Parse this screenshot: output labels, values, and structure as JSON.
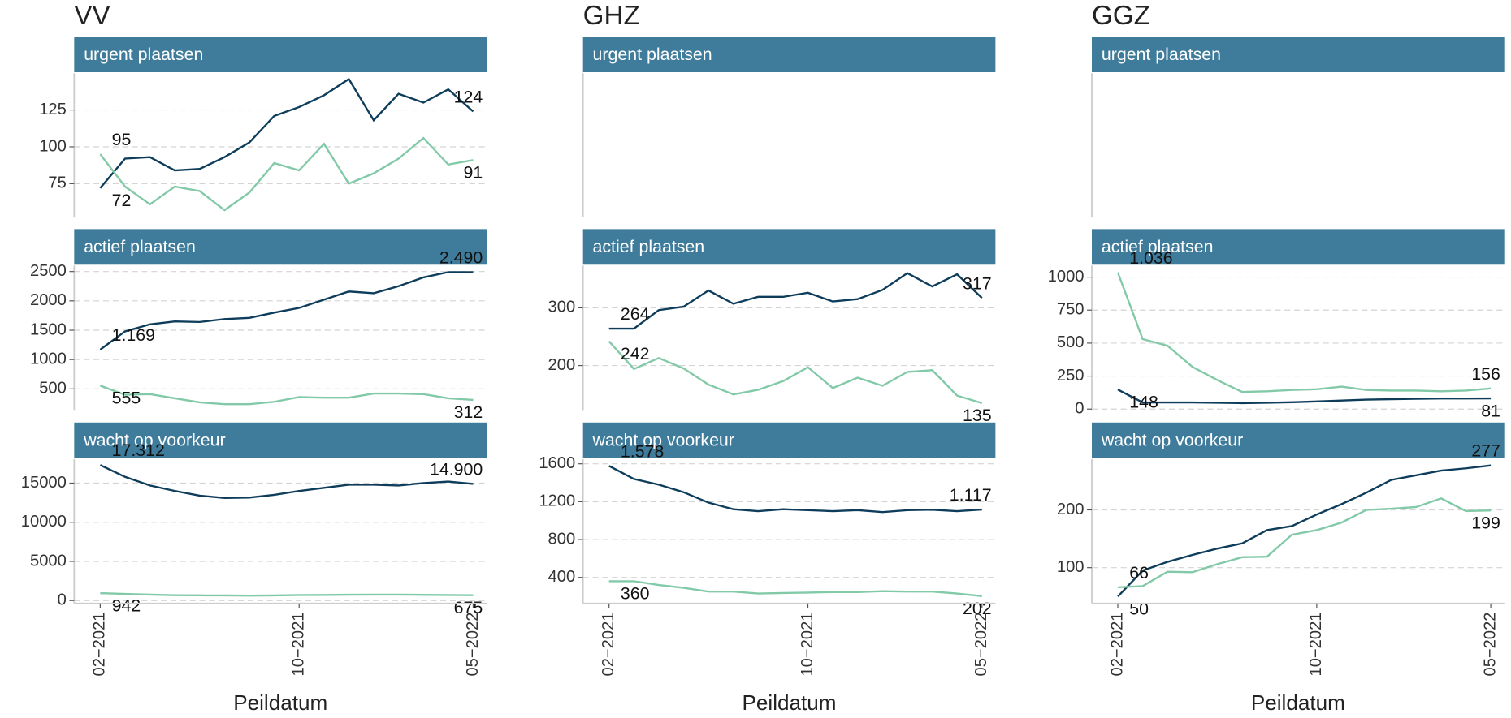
{
  "chart_data": [
    {
      "type": "line",
      "title": "VV",
      "x_label": "Peildatum",
      "categories": [
        "02−2021",
        null,
        null,
        null,
        null,
        null,
        null,
        null,
        "10−2021",
        null,
        null,
        null,
        null,
        null,
        null,
        "05−2022"
      ],
      "panels": [
        {
          "strip": "urgent plaatsen",
          "ylim": [
            52,
            150
          ],
          "yticks": [
            75,
            100,
            125
          ],
          "grid": true,
          "series": [
            {
              "color": "#0d3d5a",
              "values": [
                72,
                92,
                93,
                84,
                85,
                93,
                103,
                121,
                127,
                135,
                146,
                118,
                136,
                130,
                139,
                124
              ],
              "value_labels": [
                "72",
                null,
                null,
                null,
                null,
                null,
                null,
                null,
                null,
                null,
                null,
                null,
                null,
                null,
                null,
                "124"
              ]
            },
            {
              "color": "#82c9a8",
              "values": [
                95,
                73,
                61,
                73,
                70,
                57,
                69,
                89,
                84,
                102,
                75,
                82,
                92,
                106,
                88,
                91
              ],
              "value_labels": [
                "95",
                null,
                null,
                null,
                null,
                null,
                null,
                null,
                null,
                null,
                null,
                null,
                null,
                null,
                null,
                "91"
              ]
            }
          ]
        },
        {
          "strip": "actief plaatsen",
          "ylim": [
            140,
            2600
          ],
          "yticks": [
            500,
            1000,
            1500,
            2000,
            2500
          ],
          "grid": true,
          "series": [
            {
              "color": "#0d3d5a",
              "values": [
                1169,
                1480,
                1600,
                1650,
                1640,
                1690,
                1710,
                1800,
                1880,
                2020,
                2160,
                2130,
                2250,
                2400,
                2490,
                2490
              ],
              "value_labels": [
                "1.169",
                null,
                null,
                null,
                null,
                null,
                null,
                null,
                null,
                null,
                null,
                null,
                null,
                null,
                null,
                "2.490"
              ]
            },
            {
              "color": "#82c9a8",
              "values": [
                555,
                400,
                410,
                340,
                270,
                240,
                240,
                280,
                360,
                350,
                350,
                420,
                420,
                410,
                340,
                312
              ],
              "value_labels": [
                "555",
                null,
                null,
                null,
                null,
                null,
                null,
                null,
                null,
                null,
                null,
                null,
                null,
                null,
                null,
                "312"
              ]
            }
          ]
        },
        {
          "strip": "wacht op voorkeur",
          "ylim": [
            -370,
            18070
          ],
          "yticks": [
            0,
            5000,
            10000,
            15000
          ],
          "grid": true,
          "series": [
            {
              "color": "#0d3d5a",
              "values": [
                17312,
                15800,
                14700,
                14000,
                13400,
                13100,
                13150,
                13500,
                14000,
                14400,
                14800,
                14800,
                14700,
                15000,
                15200,
                14900
              ],
              "value_labels": [
                "17.312",
                null,
                null,
                null,
                null,
                null,
                null,
                null,
                null,
                null,
                null,
                null,
                null,
                null,
                null,
                "14.900"
              ]
            },
            {
              "color": "#82c9a8",
              "values": [
                942,
                850,
                750,
                680,
                660,
                650,
                630,
                650,
                700,
                720,
                740,
                760,
                760,
                730,
                700,
                675
              ],
              "value_labels": [
                "942",
                null,
                null,
                null,
                null,
                null,
                null,
                null,
                null,
                null,
                null,
                null,
                null,
                null,
                null,
                "675"
              ]
            }
          ]
        }
      ]
    },
    {
      "type": "line",
      "title": "GHZ",
      "x_label": "Peildatum",
      "categories": [
        "02−2021",
        null,
        null,
        null,
        null,
        null,
        null,
        null,
        "10−2021",
        null,
        null,
        null,
        null,
        null,
        null,
        "05−2022"
      ],
      "panels": [
        {
          "strip": "urgent plaatsen",
          "series": []
        },
        {
          "strip": "actief plaatsen",
          "ylim": [
            123,
            373
          ],
          "yticks": [
            200,
            300
          ],
          "grid": true,
          "series": [
            {
              "color": "#0d3d5a",
              "values": [
                264,
                264,
                296,
                302,
                330,
                307,
                319,
                319,
                326,
                311,
                315,
                331,
                360,
                337,
                358,
                317
              ],
              "value_labels": [
                "264",
                null,
                null,
                null,
                null,
                null,
                null,
                null,
                null,
                null,
                null,
                null,
                null,
                null,
                null,
                "317"
              ]
            },
            {
              "color": "#82c9a8",
              "values": [
                242,
                194,
                213,
                195,
                167,
                150,
                158,
                173,
                197,
                161,
                179,
                165,
                189,
                192,
                148,
                135
              ],
              "value_labels": [
                "242",
                null,
                null,
                null,
                null,
                null,
                null,
                null,
                null,
                null,
                null,
                null,
                null,
                null,
                null,
                "135"
              ]
            }
          ]
        },
        {
          "strip": "wacht op voorkeur",
          "ylim": [
            125,
            1650
          ],
          "yticks": [
            400,
            800,
            1200,
            1600
          ],
          "grid": true,
          "series": [
            {
              "color": "#0d3d5a",
              "values": [
                1578,
                1440,
                1380,
                1300,
                1190,
                1120,
                1100,
                1120,
                1110,
                1100,
                1110,
                1090,
                1110,
                1115,
                1100,
                1117
              ],
              "value_labels": [
                "1.578",
                null,
                null,
                null,
                null,
                null,
                null,
                null,
                null,
                null,
                null,
                null,
                null,
                null,
                null,
                "1.117"
              ]
            },
            {
              "color": "#82c9a8",
              "values": [
                360,
                360,
                320,
                290,
                250,
                250,
                230,
                235,
                240,
                245,
                245,
                255,
                250,
                250,
                230,
                202
              ],
              "value_labels": [
                "360",
                null,
                null,
                null,
                null,
                null,
                null,
                null,
                null,
                null,
                null,
                null,
                null,
                null,
                null,
                "202"
              ]
            }
          ]
        }
      ]
    },
    {
      "type": "line",
      "title": "GGZ",
      "x_label": "Peildatum",
      "categories": [
        "02−2021",
        null,
        null,
        null,
        null,
        null,
        null,
        null,
        "10−2021",
        null,
        null,
        null,
        null,
        null,
        null,
        "05−2022"
      ],
      "panels": [
        {
          "strip": "urgent plaatsen",
          "series": []
        },
        {
          "strip": "actief plaatsen",
          "ylim": [
            -7,
            1087
          ],
          "yticks": [
            0,
            250,
            500,
            750,
            1000
          ],
          "grid": true,
          "series": [
            {
              "color": "#0d3d5a",
              "values": [
                148,
                50,
                50,
                50,
                48,
                45,
                48,
                52,
                58,
                65,
                72,
                75,
                78,
                80,
                80,
                81
              ],
              "value_labels": [
                "148",
                null,
                null,
                null,
                null,
                null,
                null,
                null,
                null,
                null,
                null,
                null,
                null,
                null,
                null,
                "81"
              ]
            },
            {
              "color": "#82c9a8",
              "values": [
                1036,
                530,
                480,
                320,
                220,
                130,
                135,
                145,
                150,
                170,
                145,
                140,
                140,
                135,
                140,
                156
              ],
              "value_labels": [
                "1.036",
                null,
                null,
                null,
                null,
                null,
                null,
                null,
                null,
                null,
                null,
                null,
                null,
                null,
                null,
                "156"
              ]
            }
          ]
        },
        {
          "strip": "wacht op voorkeur",
          "ylim": [
            38,
            288
          ],
          "yticks": [
            100,
            200
          ],
          "grid": true,
          "series": [
            {
              "color": "#0d3d5a",
              "values": [
                50,
                95,
                110,
                122,
                133,
                142,
                165,
                172,
                192,
                210,
                230,
                252,
                260,
                268,
                272,
                277
              ],
              "value_labels": [
                "50",
                null,
                null,
                null,
                null,
                null,
                null,
                null,
                null,
                null,
                null,
                null,
                null,
                null,
                null,
                "277"
              ]
            },
            {
              "color": "#82c9a8",
              "values": [
                66,
                68,
                93,
                92,
                106,
                118,
                119,
                157,
                165,
                178,
                200,
                202,
                205,
                220,
                198,
                199
              ],
              "value_labels": [
                "66",
                null,
                null,
                null,
                null,
                null,
                null,
                null,
                null,
                null,
                null,
                null,
                null,
                null,
                null,
                "199"
              ]
            }
          ]
        }
      ]
    }
  ]
}
